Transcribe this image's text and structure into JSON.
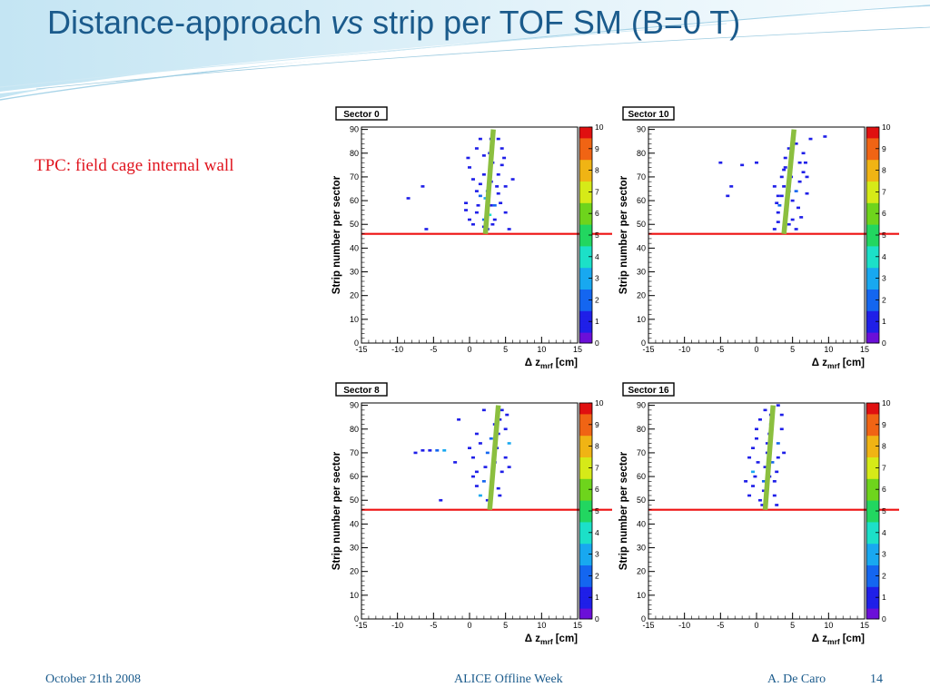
{
  "slide": {
    "title_pre": "Distance-approach ",
    "title_em": "vs",
    "title_post": " strip per TOF SM (B=0 T)",
    "note": "TPC: field cage internal wall"
  },
  "footer": {
    "date": "October 21th 2008",
    "event": "ALICE Offline Week",
    "author": "A. De Caro",
    "page": "14"
  },
  "colors": {
    "title": "#1b5b8c",
    "note": "#e0141e",
    "cut_line": "#ee1111",
    "fit_line": "#8bbf3f"
  },
  "chart_data": [
    {
      "type": "heatmap",
      "title": "Sector 0",
      "xlabel": "Δ z",
      "xlabel_sub": "mrf",
      "xlabel_unit": "[cm]",
      "ylabel": "Strip number per sector",
      "xlim": [
        -15,
        15
      ],
      "ylim": [
        0,
        91
      ],
      "zlim": [
        0,
        10
      ],
      "xticks": [
        -15,
        -10,
        -5,
        0,
        5,
        10,
        15
      ],
      "yticks": [
        0,
        10,
        20,
        30,
        40,
        50,
        60,
        70,
        80,
        90
      ],
      "zticks": [
        0,
        1,
        2,
        3,
        4,
        5,
        6,
        7,
        8,
        9,
        10
      ],
      "hline_y": 46,
      "fit_line": [
        [
          2.2,
          46
        ],
        [
          3.3,
          90
        ]
      ],
      "cells": [
        [
          -6.5,
          66,
          1
        ],
        [
          -8.5,
          61,
          1
        ],
        [
          -6,
          48,
          1
        ],
        [
          -0.5,
          59,
          1
        ],
        [
          -0.5,
          56,
          1
        ],
        [
          0,
          52,
          1
        ],
        [
          0.5,
          50,
          1
        ],
        [
          1,
          55,
          1
        ],
        [
          1.2,
          58,
          1
        ],
        [
          1.5,
          62,
          2
        ],
        [
          2,
          52,
          2
        ],
        [
          2,
          49,
          1
        ],
        [
          2.5,
          48,
          1
        ],
        [
          2.5,
          55,
          2
        ],
        [
          3,
          58,
          1
        ],
        [
          2.5,
          64,
          2
        ],
        [
          3,
          68,
          1
        ],
        [
          2.8,
          72,
          2
        ],
        [
          3.2,
          76,
          1
        ],
        [
          2.8,
          80,
          1
        ],
        [
          3,
          86,
          1
        ],
        [
          3.5,
          52,
          1
        ],
        [
          3.5,
          58,
          2
        ],
        [
          4,
          63,
          1
        ],
        [
          4,
          71,
          1
        ],
        [
          4.5,
          75,
          1
        ],
        [
          4.5,
          82,
          1
        ],
        [
          4,
          86,
          1
        ],
        [
          5,
          66,
          1
        ],
        [
          6,
          69,
          1
        ],
        [
          5.5,
          48,
          1
        ],
        [
          2.2,
          61,
          3
        ],
        [
          1.5,
          67,
          1
        ],
        [
          2,
          71,
          1
        ],
        [
          0,
          74,
          1
        ],
        [
          -0.2,
          78,
          1
        ],
        [
          1,
          82,
          1
        ],
        [
          1.5,
          86,
          1
        ],
        [
          2,
          79,
          1
        ],
        [
          3.8,
          66,
          1
        ],
        [
          4.3,
          59,
          1
        ],
        [
          5,
          55,
          1
        ],
        [
          2.8,
          54,
          4
        ],
        [
          3.2,
          50,
          1
        ],
        [
          1,
          64,
          1
        ],
        [
          0.5,
          69,
          1
        ],
        [
          4.8,
          78,
          1
        ]
      ]
    },
    {
      "type": "heatmap",
      "title": "Sector 10",
      "xlabel": "Δ z",
      "xlabel_sub": "mrf",
      "xlabel_unit": "[cm]",
      "ylabel": "Strip number per sector",
      "xlim": [
        -15,
        15
      ],
      "ylim": [
        0,
        91
      ],
      "zlim": [
        0,
        10
      ],
      "xticks": [
        -15,
        -10,
        -5,
        0,
        5,
        10,
        15
      ],
      "yticks": [
        0,
        10,
        20,
        30,
        40,
        50,
        60,
        70,
        80,
        90
      ],
      "zticks": [
        0,
        1,
        2,
        3,
        4,
        5,
        6,
        7,
        8,
        9,
        10
      ],
      "hline_y": 46,
      "fit_line": [
        [
          3.8,
          46
        ],
        [
          5.2,
          90
        ]
      ],
      "cells": [
        [
          -5,
          76,
          1
        ],
        [
          -2,
          75,
          1
        ],
        [
          0,
          76,
          1
        ],
        [
          -3.5,
          66,
          1
        ],
        [
          -4,
          62,
          1
        ],
        [
          2.5,
          48,
          1
        ],
        [
          3,
          51,
          1
        ],
        [
          3,
          55,
          1
        ],
        [
          3.2,
          58,
          2
        ],
        [
          3.5,
          62,
          1
        ],
        [
          3.8,
          66,
          1
        ],
        [
          3.5,
          70,
          1
        ],
        [
          4,
          74,
          1
        ],
        [
          4,
          78,
          1
        ],
        [
          4.5,
          82,
          1
        ],
        [
          5,
          86,
          1
        ],
        [
          5.5,
          84,
          1
        ],
        [
          7.5,
          86,
          1
        ],
        [
          9.5,
          87,
          1
        ],
        [
          5,
          52,
          1
        ],
        [
          5.5,
          48,
          1
        ],
        [
          5,
          60,
          1
        ],
        [
          5.5,
          64,
          2
        ],
        [
          6,
          68,
          1
        ],
        [
          6.5,
          72,
          1
        ],
        [
          6,
          76,
          1
        ],
        [
          6.5,
          80,
          1
        ],
        [
          4.2,
          56,
          4
        ],
        [
          3,
          62,
          1
        ],
        [
          2.5,
          66,
          1
        ],
        [
          4.5,
          64,
          1
        ],
        [
          5.8,
          57,
          1
        ],
        [
          6.2,
          53,
          1
        ],
        [
          7,
          70,
          1
        ],
        [
          7,
          63,
          1
        ],
        [
          3.8,
          73,
          1
        ],
        [
          4.8,
          70,
          1
        ],
        [
          2.8,
          59,
          1
        ],
        [
          6.8,
          76,
          1
        ],
        [
          4.5,
          50,
          1
        ]
      ]
    },
    {
      "type": "heatmap",
      "title": "Sector 8",
      "xlabel": "Δ z",
      "xlabel_sub": "mrf",
      "xlabel_unit": "[cm]",
      "ylabel": "Strip number per sector",
      "xlim": [
        -15,
        15
      ],
      "ylim": [
        0,
        91
      ],
      "zlim": [
        0,
        10
      ],
      "xticks": [
        -15,
        -10,
        -5,
        0,
        5,
        10,
        15
      ],
      "yticks": [
        0,
        10,
        20,
        30,
        40,
        50,
        60,
        70,
        80,
        90
      ],
      "zticks": [
        0,
        1,
        2,
        3,
        4,
        5,
        6,
        7,
        8,
        9,
        10
      ],
      "hline_y": 46,
      "fit_line": [
        [
          2.8,
          46
        ],
        [
          4,
          90
        ]
      ],
      "cells": [
        [
          -7.5,
          70,
          1
        ],
        [
          -6.5,
          71,
          1
        ],
        [
          -5.5,
          71,
          1
        ],
        [
          -4.5,
          71,
          2
        ],
        [
          -3.5,
          71,
          3
        ],
        [
          -2,
          66,
          1
        ],
        [
          -4,
          50,
          1
        ],
        [
          -1.5,
          84,
          1
        ],
        [
          0,
          72,
          1
        ],
        [
          0.5,
          68,
          1
        ],
        [
          1,
          62,
          1
        ],
        [
          1,
          56,
          1
        ],
        [
          1.5,
          52,
          3
        ],
        [
          2,
          58,
          2
        ],
        [
          2.2,
          64,
          1
        ],
        [
          2.5,
          70,
          2
        ],
        [
          3,
          76,
          2
        ],
        [
          3.2,
          60,
          1
        ],
        [
          3.5,
          66,
          1
        ],
        [
          3.8,
          72,
          1
        ],
        [
          4,
          78,
          1
        ],
        [
          4.2,
          84,
          1
        ],
        [
          4.5,
          88,
          1
        ],
        [
          4,
          55,
          1
        ],
        [
          4.5,
          62,
          1
        ],
        [
          5,
          68,
          1
        ],
        [
          5.5,
          74,
          3
        ],
        [
          5,
          80,
          1
        ],
        [
          5.2,
          86,
          1
        ],
        [
          3,
          54,
          1
        ],
        [
          2.5,
          50,
          1
        ],
        [
          1.5,
          74,
          1
        ],
        [
          1,
          78,
          1
        ],
        [
          4.2,
          52,
          1
        ],
        [
          3.5,
          82,
          1
        ],
        [
          2,
          88,
          1
        ],
        [
          5.5,
          64,
          1
        ],
        [
          0.5,
          60,
          1
        ]
      ]
    },
    {
      "type": "heatmap",
      "title": "Sector 16",
      "xlabel": "Δ z",
      "xlabel_sub": "mrf",
      "xlabel_unit": "[cm]",
      "ylabel": "Strip number per sector",
      "xlim": [
        -15,
        15
      ],
      "ylim": [
        0,
        91
      ],
      "zlim": [
        0,
        10
      ],
      "xticks": [
        -15,
        -10,
        -5,
        0,
        5,
        10,
        15
      ],
      "yticks": [
        0,
        10,
        20,
        30,
        40,
        50,
        60,
        70,
        80,
        90
      ],
      "zticks": [
        0,
        1,
        2,
        3,
        4,
        5,
        6,
        7,
        8,
        9,
        10
      ],
      "hline_y": 46,
      "fit_line": [
        [
          1.2,
          46
        ],
        [
          2.3,
          90
        ]
      ],
      "cells": [
        [
          -1,
          52,
          1
        ],
        [
          -0.5,
          56,
          1
        ],
        [
          -0.5,
          62,
          3
        ],
        [
          -1,
          68,
          1
        ],
        [
          -0.5,
          72,
          1
        ],
        [
          0,
          76,
          1
        ],
        [
          0,
          80,
          1
        ],
        [
          0.5,
          84,
          1
        ],
        [
          0.5,
          50,
          1
        ],
        [
          1,
          54,
          1
        ],
        [
          1,
          58,
          2
        ],
        [
          1.2,
          64,
          1
        ],
        [
          1.5,
          70,
          1
        ],
        [
          1.5,
          74,
          1
        ],
        [
          1.8,
          78,
          1
        ],
        [
          2,
          82,
          1
        ],
        [
          2,
          86,
          1
        ],
        [
          2.5,
          52,
          1
        ],
        [
          2.5,
          58,
          1
        ],
        [
          2.8,
          62,
          1
        ],
        [
          3,
          68,
          1
        ],
        [
          3,
          74,
          2
        ],
        [
          3.5,
          80,
          1
        ],
        [
          3.5,
          86,
          1
        ],
        [
          3,
          90,
          1
        ],
        [
          0.2,
          66,
          1
        ],
        [
          2.2,
          66,
          2
        ],
        [
          -0.2,
          60,
          1
        ],
        [
          1.8,
          60,
          1
        ],
        [
          0.8,
          48,
          1
        ],
        [
          -1.5,
          58,
          1
        ],
        [
          3.8,
          70,
          1
        ],
        [
          1.2,
          88,
          1
        ],
        [
          2.8,
          48,
          1
        ]
      ]
    }
  ]
}
